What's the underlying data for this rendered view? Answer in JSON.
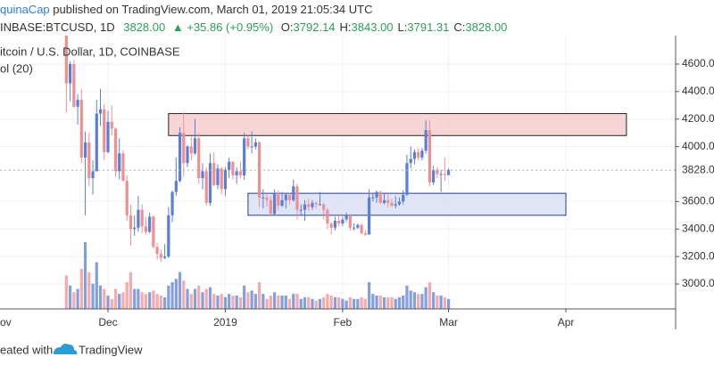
{
  "header": {
    "author": "quinaCap",
    "published": "published on TradingView.com, March 01, 2019 21:05:34 UTC",
    "symbol": "INBASE:BTCUSD, 1D",
    "last": "3828.00",
    "change": "▲ +35.86 (+0.95%)",
    "quote": [
      {
        "key": "O:",
        "value": "3792.14"
      },
      {
        "key": "H:",
        "value": "3843.00"
      },
      {
        "key": "L:",
        "value": "3791.31"
      },
      {
        "key": "C:",
        "value": "3828.00"
      }
    ]
  },
  "chart_data": {
    "type": "candlestick",
    "legend": [
      "itcoin / U.S. Dollar, 1D, COINBASE",
      "ol (20)"
    ],
    "up_color": "#5b7fd6",
    "down_color": "#ef8f92",
    "ylim": [
      2819,
      4807
    ],
    "yticks": [
      {
        "value": 4600,
        "label": "4600.00"
      },
      {
        "value": 4400,
        "label": "4400.00"
      },
      {
        "value": 4200,
        "label": "4200.00"
      },
      {
        "value": 4000,
        "label": "4000.00"
      },
      {
        "value": 3600,
        "label": "3600.00"
      },
      {
        "value": 3400,
        "label": "3400.00"
      },
      {
        "value": 3200,
        "label": "3200.00"
      },
      {
        "value": 3000,
        "label": "3000.00"
      }
    ],
    "xticks": [
      {
        "value": -19,
        "label": "ov"
      },
      {
        "value": 11,
        "label": "Dec"
      },
      {
        "value": 42,
        "label": "2019"
      },
      {
        "value": 73,
        "label": "Feb"
      },
      {
        "value": 101,
        "label": "Mar"
      },
      {
        "value": 132,
        "label": "Apr"
      }
    ],
    "grid": true,
    "last_price": {
      "value": 3828,
      "label": "3828.00"
    },
    "zones": [
      {
        "top": 4240,
        "bottom": 4080,
        "start": 27,
        "end": 148,
        "color": "#f4c7c9",
        "stroke": "#222"
      },
      {
        "top": 3660,
        "bottom": 3500,
        "start": 48,
        "end": 132,
        "color": "#d5dcf3",
        "stroke": "#2a3f8f"
      }
    ],
    "candles": [
      [
        4870,
        4950,
        4250,
        4460
      ],
      [
        4460,
        4620,
        4330,
        4600
      ],
      [
        4600,
        4630,
        4280,
        4290
      ],
      [
        4290,
        4380,
        4160,
        4340
      ],
      [
        4340,
        4420,
        3880,
        3920
      ],
      [
        3920,
        4110,
        3500,
        4030
      ],
      [
        4030,
        4100,
        3710,
        3770
      ],
      [
        3770,
        3900,
        3650,
        3820
      ],
      [
        3820,
        4340,
        3820,
        4240
      ],
      [
        4240,
        4420,
        4150,
        4270
      ],
      [
        4270,
        4310,
        3900,
        3960
      ],
      [
        3960,
        4260,
        3950,
        4180
      ],
      [
        4180,
        4300,
        4080,
        4130
      ],
      [
        4130,
        4140,
        3780,
        3820
      ],
      [
        3820,
        4060,
        3760,
        3950
      ],
      [
        3950,
        3970,
        3750,
        3750
      ],
      [
        3750,
        3790,
        3460,
        3500
      ],
      [
        3500,
        3580,
        3280,
        3400
      ],
      [
        3400,
        3500,
        3350,
        3410
      ],
      [
        3410,
        3640,
        3380,
        3540
      ],
      [
        3540,
        3580,
        3370,
        3420
      ],
      [
        3420,
        3490,
        3360,
        3380
      ],
      [
        3380,
        3520,
        3370,
        3490
      ],
      [
        3490,
        3500,
        3260,
        3270
      ],
      [
        3270,
        3300,
        3180,
        3220
      ],
      [
        3220,
        3250,
        3160,
        3190
      ],
      [
        3190,
        3290,
        3180,
        3200
      ],
      [
        3200,
        3560,
        3190,
        3500
      ],
      [
        3500,
        3680,
        3450,
        3670
      ],
      [
        3670,
        3920,
        3640,
        3750
      ],
      [
        3750,
        4140,
        3740,
        4100
      ],
      [
        4100,
        4250,
        3780,
        3880
      ],
      [
        3880,
        4010,
        3850,
        4000
      ],
      [
        4000,
        4080,
        3900,
        3950
      ],
      [
        3950,
        4200,
        3940,
        4060
      ],
      [
        4060,
        4100,
        3730,
        3770
      ],
      [
        3770,
        3880,
        3690,
        3820
      ],
      [
        3820,
        3850,
        3570,
        3590
      ],
      [
        3590,
        3950,
        3570,
        3880
      ],
      [
        3880,
        3960,
        3710,
        3720
      ],
      [
        3720,
        3870,
        3690,
        3840
      ],
      [
        3840,
        3850,
        3650,
        3690
      ],
      [
        3690,
        3850,
        3640,
        3830
      ],
      [
        3830,
        3920,
        3770,
        3890
      ],
      [
        3890,
        3890,
        3760,
        3790
      ],
      [
        3790,
        3850,
        3730,
        3820
      ],
      [
        3820,
        3890,
        3770,
        3790
      ],
      [
        3790,
        4100,
        3760,
        4060
      ],
      [
        4060,
        4080,
        3980,
        4000
      ],
      [
        4000,
        4110,
        3950,
        4000
      ],
      [
        4000,
        4060,
        3980,
        4030
      ],
      [
        4030,
        4040,
        3560,
        3630
      ],
      [
        3630,
        3690,
        3550,
        3630
      ],
      [
        3630,
        3650,
        3560,
        3610
      ],
      [
        3610,
        3640,
        3490,
        3510
      ],
      [
        3510,
        3690,
        3500,
        3660
      ],
      [
        3660,
        3680,
        3540,
        3570
      ],
      [
        3570,
        3670,
        3560,
        3610
      ],
      [
        3610,
        3660,
        3550,
        3650
      ],
      [
        3650,
        3660,
        3580,
        3610
      ],
      [
        3610,
        3760,
        3600,
        3710
      ],
      [
        3710,
        3730,
        3470,
        3540
      ],
      [
        3540,
        3580,
        3500,
        3540
      ],
      [
        3540,
        3610,
        3460,
        3580
      ],
      [
        3580,
        3620,
        3530,
        3560
      ],
      [
        3560,
        3610,
        3540,
        3590
      ],
      [
        3590,
        3600,
        3550,
        3580
      ],
      [
        3580,
        3670,
        3570,
        3580
      ],
      [
        3580,
        3590,
        3470,
        3540
      ],
      [
        3540,
        3550,
        3400,
        3440
      ],
      [
        3440,
        3450,
        3360,
        3410
      ],
      [
        3410,
        3490,
        3390,
        3460
      ],
      [
        3460,
        3510,
        3420,
        3440
      ],
      [
        3440,
        3490,
        3420,
        3470
      ],
      [
        3470,
        3520,
        3450,
        3500
      ],
      [
        3500,
        3510,
        3390,
        3410
      ],
      [
        3410,
        3440,
        3390,
        3410
      ],
      [
        3410,
        3440,
        3400,
        3430
      ],
      [
        3430,
        3440,
        3360,
        3370
      ],
      [
        3370,
        3390,
        3350,
        3360
      ],
      [
        3360,
        3690,
        3360,
        3630
      ],
      [
        3630,
        3660,
        3600,
        3630
      ],
      [
        3630,
        3680,
        3590,
        3670
      ],
      [
        3670,
        3680,
        3580,
        3590
      ],
      [
        3590,
        3660,
        3580,
        3610
      ],
      [
        3610,
        3650,
        3560,
        3590
      ],
      [
        3590,
        3620,
        3560,
        3570
      ],
      [
        3570,
        3640,
        3550,
        3580
      ],
      [
        3580,
        3630,
        3570,
        3600
      ],
      [
        3600,
        3680,
        3580,
        3650
      ],
      [
        3650,
        3940,
        3640,
        3880
      ],
      [
        3880,
        4000,
        3840,
        3910
      ],
      [
        3910,
        3980,
        3870,
        3960
      ],
      [
        3960,
        3990,
        3900,
        3920
      ],
      [
        3920,
        3990,
        3900,
        3970
      ],
      [
        3970,
        4190,
        3950,
        4120
      ],
      [
        4120,
        4190,
        3710,
        3740
      ],
      [
        3740,
        3860,
        3720,
        3830
      ],
      [
        3830,
        3850,
        3770,
        3800
      ],
      [
        3800,
        3830,
        3670,
        3800
      ],
      [
        3800,
        3920,
        3750,
        3792
      ],
      [
        3792.14,
        3843,
        3791.31,
        3828
      ]
    ],
    "volumes": [
      20,
      14,
      10,
      12,
      24,
      40,
      22,
      15,
      28,
      14,
      12,
      8,
      6,
      12,
      9,
      10,
      16,
      22,
      12,
      12,
      10,
      9,
      10,
      11,
      9,
      8,
      7,
      14,
      16,
      18,
      22,
      17,
      12,
      9,
      12,
      14,
      10,
      12,
      13,
      9,
      8,
      9,
      7,
      9,
      8,
      8,
      7,
      14,
      10,
      11,
      9,
      16,
      9,
      6,
      8,
      10,
      8,
      8,
      8,
      6,
      9,
      9,
      6,
      7,
      7,
      6,
      5,
      6,
      7,
      9,
      8,
      7,
      7,
      6,
      5,
      7,
      6,
      6,
      7,
      6,
      16,
      9,
      8,
      8,
      7,
      7,
      7,
      6,
      7,
      8,
      14,
      11,
      10,
      9,
      9,
      13,
      16,
      10,
      8,
      8,
      7,
      6
    ]
  },
  "footer": {
    "made": "eated with",
    "brand": "TradingView"
  }
}
